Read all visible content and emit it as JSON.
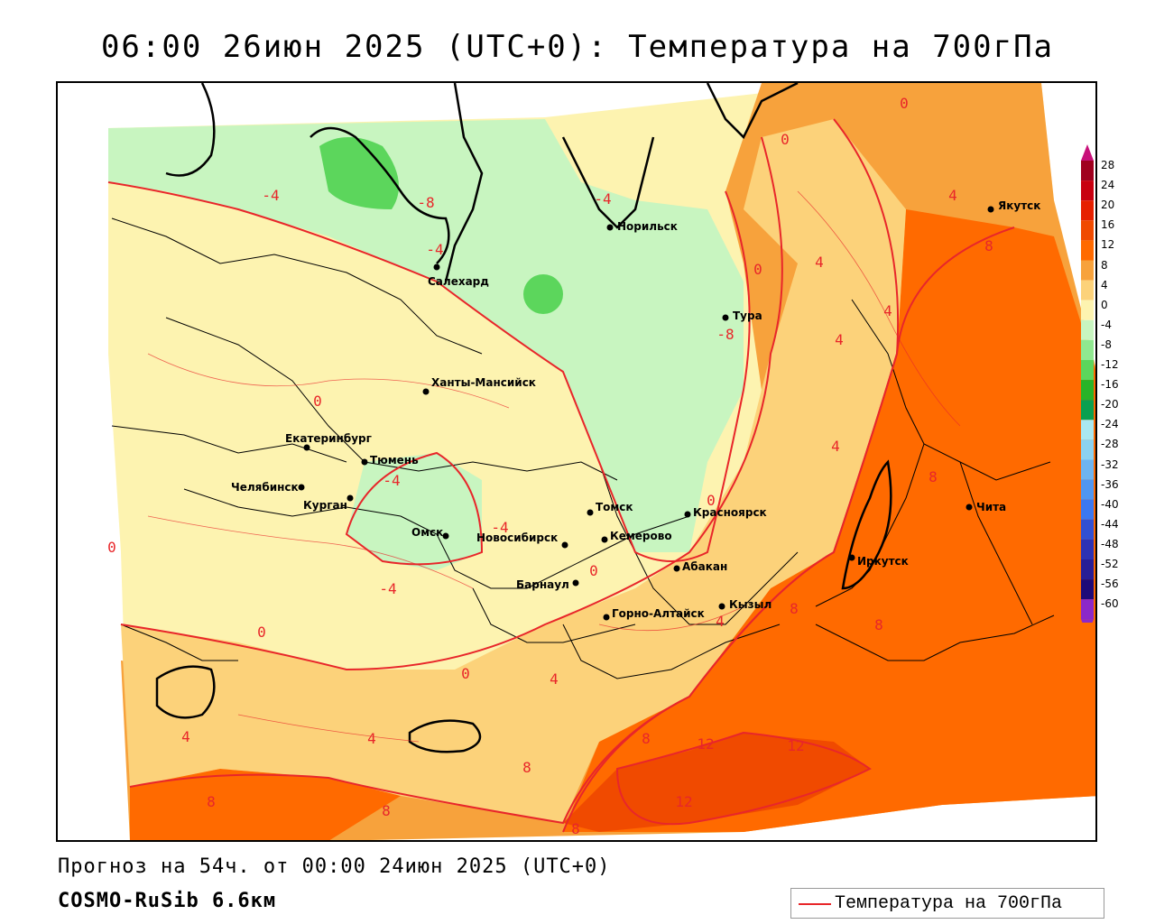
{
  "title": "06:00 26июн 2025 (UTC+0): Температура на 700гПа",
  "footer": {
    "forecast": "Прогноз на 54ч. от 00:00 24июн 2025 (UTC+0)",
    "model": "COSMO-RuSib 6.6км"
  },
  "legend": {
    "label": "Температура на 700гПа",
    "line_color": "#e8262a"
  },
  "colorbar": {
    "levels": [
      "28",
      "24",
      "20",
      "16",
      "12",
      "8",
      "4",
      "0",
      "-4",
      "-8",
      "-12",
      "-16",
      "-20",
      "-24",
      "-28",
      "-32",
      "-36",
      "-40",
      "-44",
      "-48",
      "-52",
      "-56",
      "-60"
    ],
    "colors": [
      "#a0001e",
      "#c80010",
      "#e62000",
      "#f04a00",
      "#ff6a00",
      "#f7a23c",
      "#fcd27a",
      "#fdf3b0",
      "#c8f5c0",
      "#90e890",
      "#5cd65c",
      "#28b428",
      "#0aa050",
      "#aae8f0",
      "#8cd2f0",
      "#6eb4f0",
      "#5096f0",
      "#3c78f0",
      "#3250d2",
      "#2d32b4",
      "#281e96",
      "#1e0a78",
      "#8c28c8"
    ]
  },
  "cities": [
    {
      "name": "Якутск"
    },
    {
      "name": "Норильск"
    },
    {
      "name": "Салехард"
    },
    {
      "name": "Тура"
    },
    {
      "name": "Ханты-Мансийск"
    },
    {
      "name": "Екатеринбург"
    },
    {
      "name": "Тюмень"
    },
    {
      "name": "Челябинск"
    },
    {
      "name": "Курган"
    },
    {
      "name": "Омск"
    },
    {
      "name": "Новосибирск"
    },
    {
      "name": "Томск"
    },
    {
      "name": "Кемерово"
    },
    {
      "name": "Красноярск"
    },
    {
      "name": "Абакан"
    },
    {
      "name": "Барнаул"
    },
    {
      "name": "Горно-Алтайск"
    },
    {
      "name": "Кызыл"
    },
    {
      "name": "Иркутск"
    },
    {
      "name": "Чита"
    }
  ],
  "contour_labels": [
    {
      "text": "0"
    },
    {
      "text": "0"
    },
    {
      "text": "0"
    },
    {
      "text": "0"
    },
    {
      "text": "0"
    },
    {
      "text": "0"
    },
    {
      "text": "0"
    },
    {
      "text": "0"
    },
    {
      "text": "0"
    },
    {
      "text": "-4"
    },
    {
      "text": "-4"
    },
    {
      "text": "-4"
    },
    {
      "text": "-4"
    },
    {
      "text": "-4"
    },
    {
      "text": "-4"
    },
    {
      "text": "-8"
    },
    {
      "text": "-8"
    },
    {
      "text": "4"
    },
    {
      "text": "4"
    },
    {
      "text": "4"
    },
    {
      "text": "4"
    },
    {
      "text": "4"
    },
    {
      "text": "4"
    },
    {
      "text": "4"
    },
    {
      "text": "4"
    },
    {
      "text": "4"
    },
    {
      "text": "8"
    },
    {
      "text": "8"
    },
    {
      "text": "8"
    },
    {
      "text": "8"
    },
    {
      "text": "8"
    },
    {
      "text": "8"
    },
    {
      "text": "8"
    },
    {
      "text": "8"
    },
    {
      "text": "8"
    },
    {
      "text": "12"
    },
    {
      "text": "12"
    },
    {
      "text": "12"
    }
  ]
}
